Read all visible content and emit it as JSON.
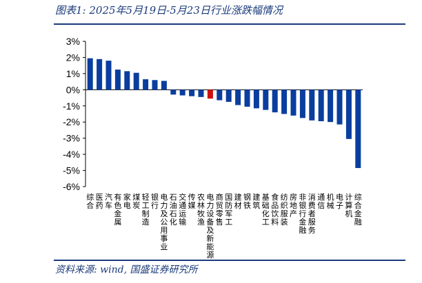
{
  "header": {
    "title": "图表1:  2025年5月19日-5月23日行业涨跌幅情况"
  },
  "footer": {
    "source": "资料来源: wind, 国盛证券研究所"
  },
  "colors": {
    "positive": "#0a3e9e",
    "negative": "#0a3e9e",
    "highlight": "#cc1111",
    "rule": "#1a3a7a"
  },
  "chart_data": {
    "type": "bar",
    "title": "",
    "xlabel": "",
    "ylabel": "",
    "ylim": [
      -6,
      3
    ],
    "yticks": [
      3,
      2,
      1,
      0,
      -1,
      -2,
      -3,
      -4,
      -5,
      -6
    ],
    "ytick_labels": [
      "3%",
      "2%",
      "1%",
      "0%",
      "-1%",
      "-2%",
      "-3%",
      "-4%",
      "-5%",
      "-6%"
    ],
    "categories": [
      "综合",
      "医药",
      "汽车",
      "有色金属",
      "家电",
      "煤炭",
      "轻工制造",
      "银行",
      "电力及公用事业",
      "石油石化",
      "交通运输",
      "传媒",
      "农林牧渔",
      "电力设备及新能源",
      "商贸零售",
      "国防军工",
      "建材",
      "钢铁",
      "建筑",
      "基础化工",
      "食品饮料",
      "纺织服装",
      "房地产",
      "非银行金融",
      "消费者服务",
      "通信",
      "机械",
      "电子",
      "计算机",
      "综合金融"
    ],
    "values": [
      1.95,
      1.9,
      1.8,
      1.25,
      1.15,
      1.05,
      0.65,
      0.6,
      0.55,
      -0.3,
      -0.35,
      -0.4,
      -0.45,
      -0.55,
      -0.65,
      -0.75,
      -0.95,
      -1.05,
      -1.15,
      -1.25,
      -1.4,
      -1.5,
      -1.6,
      -1.75,
      -1.9,
      -1.95,
      -2.0,
      -2.15,
      -3.05,
      -4.85
    ],
    "highlight_index": 13,
    "grid": false
  }
}
